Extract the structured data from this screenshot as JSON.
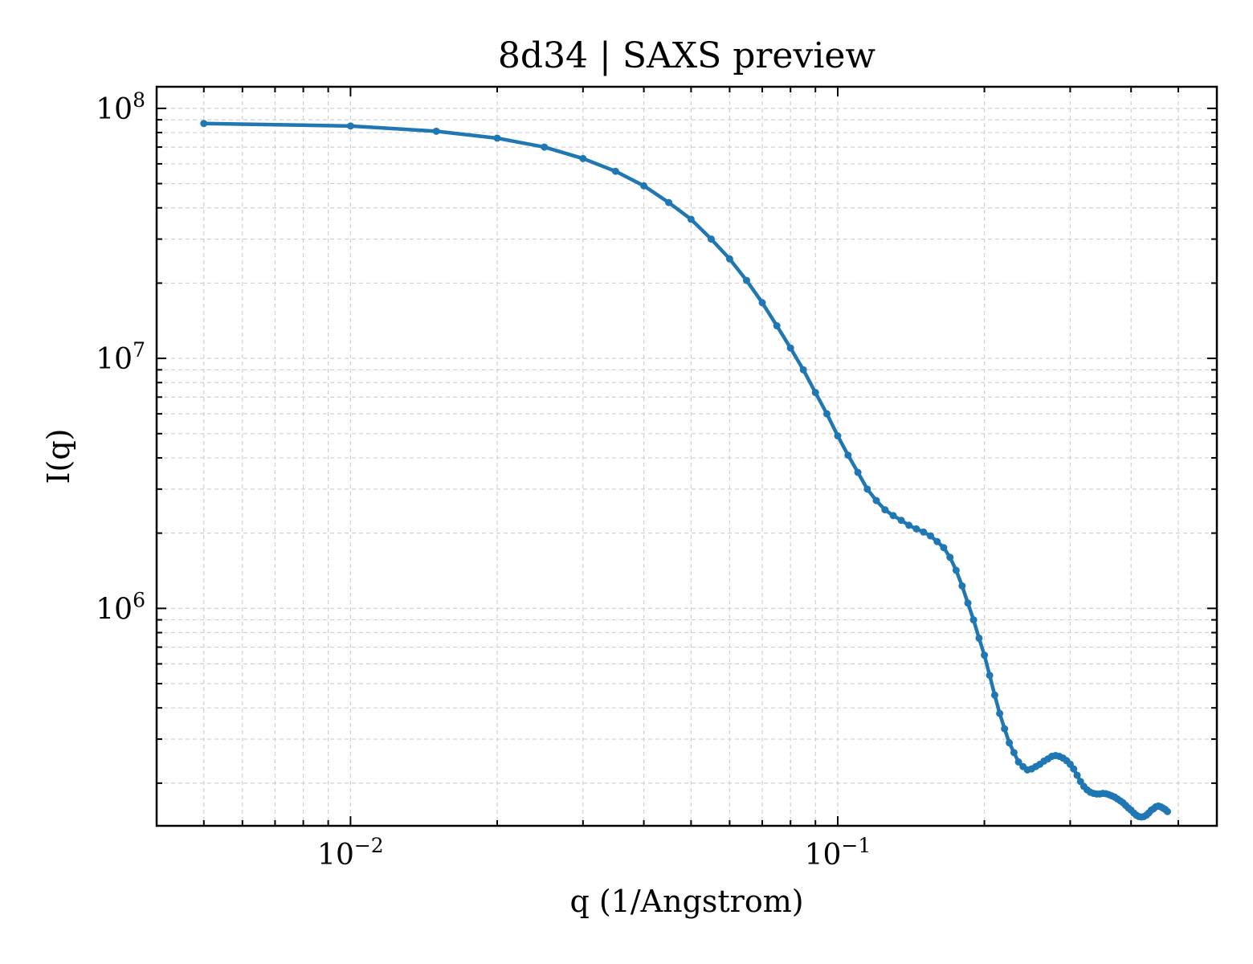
{
  "chart_data": {
    "type": "line",
    "title": "8d34 | SAXS preview",
    "xlabel": "q (1/Angstrom)",
    "ylabel": "I(q)",
    "xscale": "log",
    "yscale": "log",
    "xlim": [
      0.004,
      0.6
    ],
    "ylim": [
      135000,
      122000000
    ],
    "grid": true,
    "legend": "none",
    "x_ticks": [
      {
        "value": 0.01,
        "base": "10",
        "exp": "−2"
      },
      {
        "value": 0.1,
        "base": "10",
        "exp": "−1"
      }
    ],
    "y_ticks": [
      {
        "value": 1000000,
        "base": "10",
        "exp": "6"
      },
      {
        "value": 10000000,
        "base": "10",
        "exp": "7"
      },
      {
        "value": 100000000,
        "base": "10",
        "exp": "8"
      }
    ],
    "series": [
      {
        "color": "#1f77b4",
        "marker": "circle",
        "points": [
          [
            0.005,
            87000000
          ],
          [
            0.01,
            85000000
          ],
          [
            0.015,
            81000000
          ],
          [
            0.02,
            76000000
          ],
          [
            0.025,
            70000000
          ],
          [
            0.03,
            63000000
          ],
          [
            0.035,
            56000000
          ],
          [
            0.04,
            49000000
          ],
          [
            0.045,
            42000000
          ],
          [
            0.05,
            36000000
          ],
          [
            0.055,
            30000000
          ],
          [
            0.06,
            25000000
          ],
          [
            0.065,
            20500000
          ],
          [
            0.07,
            16700000
          ],
          [
            0.075,
            13500000
          ],
          [
            0.08,
            11000000
          ],
          [
            0.085,
            9000000
          ],
          [
            0.09,
            7300000
          ],
          [
            0.095,
            6000000
          ],
          [
            0.1,
            4900000
          ],
          [
            0.105,
            4100000
          ],
          [
            0.11,
            3500000
          ],
          [
            0.115,
            3000000
          ],
          [
            0.12,
            2700000
          ],
          [
            0.125,
            2480000
          ],
          [
            0.13,
            2350000
          ],
          [
            0.135,
            2250000
          ],
          [
            0.14,
            2150000
          ],
          [
            0.145,
            2080000
          ],
          [
            0.15,
            2020000
          ],
          [
            0.155,
            1950000
          ],
          [
            0.16,
            1850000
          ],
          [
            0.165,
            1750000
          ],
          [
            0.17,
            1600000
          ],
          [
            0.175,
            1420000
          ],
          [
            0.18,
            1230000
          ],
          [
            0.185,
            1050000
          ],
          [
            0.19,
            900000
          ],
          [
            0.195,
            760000
          ],
          [
            0.2,
            650000
          ],
          [
            0.205,
            540000
          ],
          [
            0.21,
            450000
          ],
          [
            0.215,
            380000
          ],
          [
            0.22,
            330000
          ],
          [
            0.225,
            290000
          ],
          [
            0.23,
            265000
          ],
          [
            0.235,
            243000
          ],
          [
            0.24,
            233000
          ],
          [
            0.245,
            226000
          ],
          [
            0.25,
            228000
          ],
          [
            0.255,
            233000
          ],
          [
            0.26,
            238000
          ],
          [
            0.265,
            245000
          ],
          [
            0.27,
            250000
          ],
          [
            0.275,
            256000
          ],
          [
            0.28,
            258000
          ],
          [
            0.285,
            256000
          ],
          [
            0.29,
            252000
          ],
          [
            0.295,
            246000
          ],
          [
            0.3,
            238000
          ],
          [
            0.305,
            228000
          ],
          [
            0.31,
            215000
          ],
          [
            0.315,
            203000
          ],
          [
            0.32,
            194000
          ],
          [
            0.325,
            188000
          ],
          [
            0.33,
            184000
          ],
          [
            0.335,
            182000
          ],
          [
            0.34,
            181000
          ],
          [
            0.345,
            181000
          ],
          [
            0.35,
            182000
          ],
          [
            0.355,
            181500
          ],
          [
            0.36,
            180000
          ],
          [
            0.365,
            178000
          ],
          [
            0.37,
            176000
          ],
          [
            0.375,
            173000
          ],
          [
            0.38,
            170000
          ],
          [
            0.385,
            167000
          ],
          [
            0.39,
            163000
          ],
          [
            0.395,
            159000
          ],
          [
            0.4,
            156000
          ],
          [
            0.405,
            152000
          ],
          [
            0.41,
            149000
          ],
          [
            0.415,
            147000
          ],
          [
            0.42,
            146500
          ],
          [
            0.425,
            147000
          ],
          [
            0.43,
            149000
          ],
          [
            0.435,
            152000
          ],
          [
            0.44,
            156000
          ],
          [
            0.445,
            158000
          ],
          [
            0.45,
            161000
          ],
          [
            0.455,
            162000
          ],
          [
            0.46,
            161000
          ],
          [
            0.465,
            159000
          ],
          [
            0.47,
            157000
          ],
          [
            0.475,
            154000
          ]
        ]
      }
    ]
  }
}
